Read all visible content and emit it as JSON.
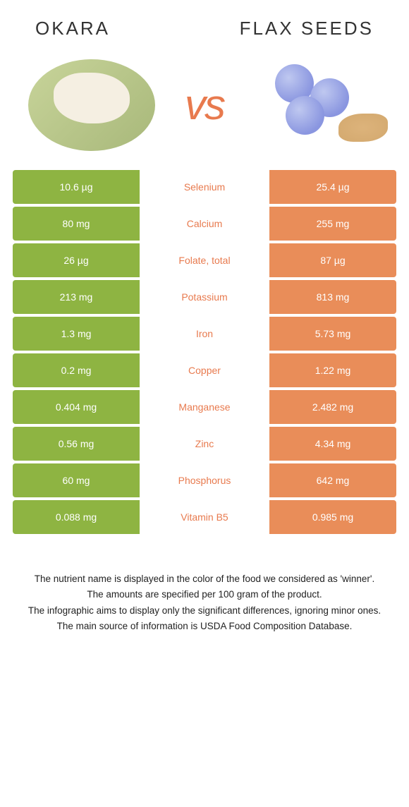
{
  "colors": {
    "left": "#8eb442",
    "right": "#e98d59",
    "nutrient_winner_right": "#e87a4e",
    "nutrient_winner_left": "#7da033"
  },
  "header": {
    "left_title": "Okara",
    "right_title": "Flax Seeds",
    "vs": "vs"
  },
  "rows": [
    {
      "nutrient": "Selenium",
      "left": "10.6 µg",
      "right": "25.4 µg",
      "winner": "right"
    },
    {
      "nutrient": "Calcium",
      "left": "80 mg",
      "right": "255 mg",
      "winner": "right"
    },
    {
      "nutrient": "Folate, total",
      "left": "26 µg",
      "right": "87 µg",
      "winner": "right"
    },
    {
      "nutrient": "Potassium",
      "left": "213 mg",
      "right": "813 mg",
      "winner": "right"
    },
    {
      "nutrient": "Iron",
      "left": "1.3 mg",
      "right": "5.73 mg",
      "winner": "right"
    },
    {
      "nutrient": "Copper",
      "left": "0.2 mg",
      "right": "1.22 mg",
      "winner": "right"
    },
    {
      "nutrient": "Manganese",
      "left": "0.404 mg",
      "right": "2.482 mg",
      "winner": "right"
    },
    {
      "nutrient": "Zinc",
      "left": "0.56 mg",
      "right": "4.34 mg",
      "winner": "right"
    },
    {
      "nutrient": "Phosphorus",
      "left": "60 mg",
      "right": "642 mg",
      "winner": "right"
    },
    {
      "nutrient": "Vitamin B5",
      "left": "0.088 mg",
      "right": "0.985 mg",
      "winner": "right"
    }
  ],
  "footer": {
    "line1": "The nutrient name is displayed in the color of the food we considered as 'winner'.",
    "line2": "The amounts are specified per 100 gram of the product.",
    "line3": "The infographic aims to display only the significant differences, ignoring minor ones.",
    "line4": "The main source of information is USDA Food Composition Database."
  }
}
